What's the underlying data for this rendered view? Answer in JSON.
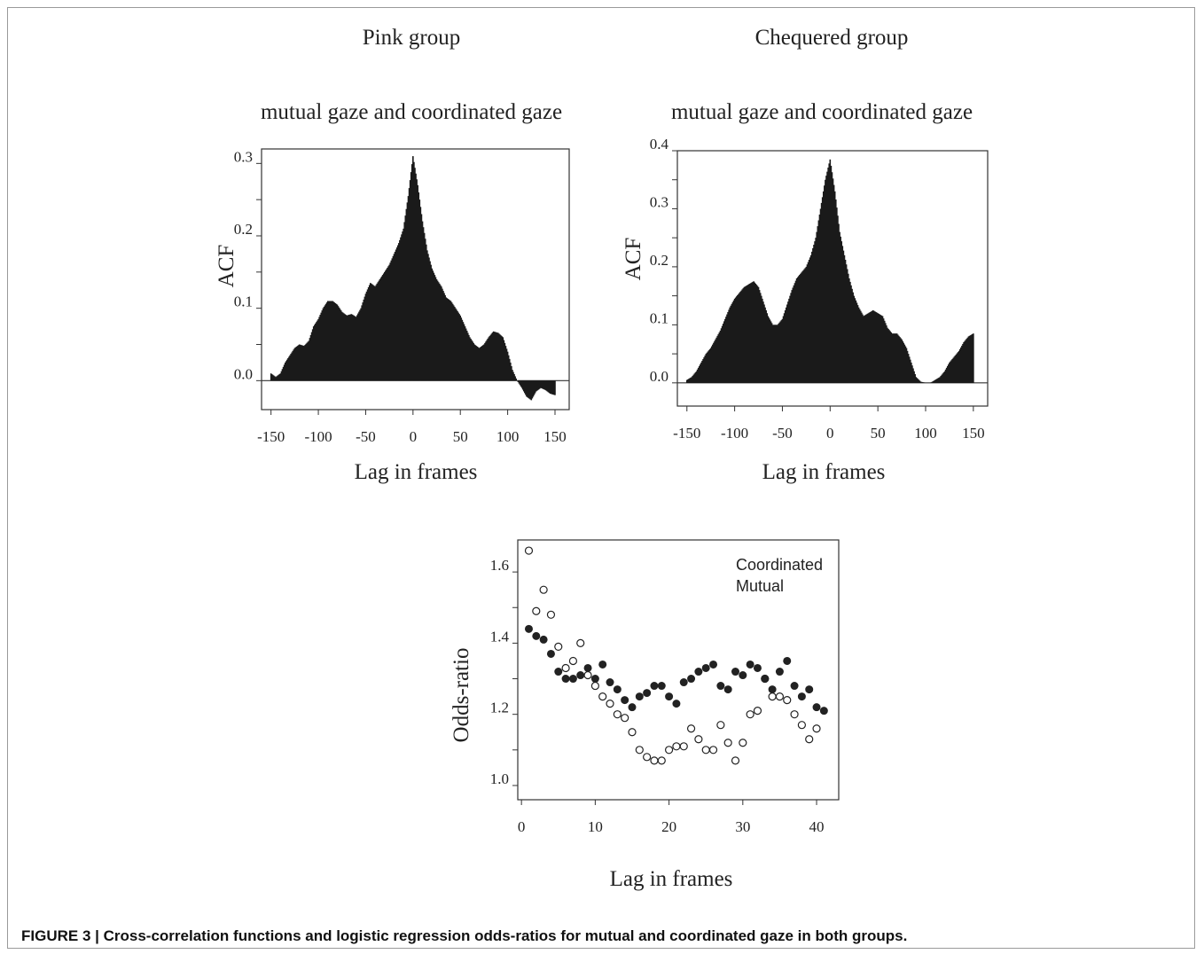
{
  "caption": "FIGURE 3 | Cross-correlation functions and logistic regression odds-ratios for mutual and coordinated gaze in both groups.",
  "chart_data": [
    {
      "type": "bar",
      "group_title": "Pink group",
      "title": "mutual gaze and coordinated gaze",
      "xlabel": "Lag in frames",
      "ylabel": "ACF",
      "xlim": [
        -160,
        165
      ],
      "ylim": [
        -0.04,
        0.32
      ],
      "xticks": [
        "-150",
        "-100",
        "-50",
        "0",
        "50",
        "100",
        "150"
      ],
      "xtick_values": [
        -150,
        -100,
        -50,
        0,
        50,
        100,
        150
      ],
      "yticks": [
        "0.0",
        "0.1",
        "0.2",
        "0.3"
      ],
      "ytick_values": [
        0.0,
        0.1,
        0.2,
        0.3
      ],
      "bar_color": "#1a1a1a",
      "profile_x": [
        -150,
        -145,
        -140,
        -135,
        -130,
        -125,
        -120,
        -115,
        -110,
        -105,
        -100,
        -95,
        -90,
        -85,
        -80,
        -75,
        -70,
        -65,
        -60,
        -55,
        -50,
        -45,
        -40,
        -35,
        -30,
        -25,
        -20,
        -15,
        -10,
        -5,
        0,
        5,
        10,
        15,
        20,
        25,
        30,
        35,
        40,
        45,
        50,
        55,
        60,
        65,
        70,
        75,
        80,
        85,
        90,
        95,
        100,
        105,
        110,
        115,
        120,
        125,
        130,
        135,
        140,
        145,
        150
      ],
      "profile_y": [
        0.01,
        0.005,
        0.01,
        0.025,
        0.035,
        0.045,
        0.05,
        0.048,
        0.055,
        0.075,
        0.085,
        0.1,
        0.11,
        0.11,
        0.105,
        0.095,
        0.09,
        0.092,
        0.088,
        0.1,
        0.12,
        0.135,
        0.13,
        0.14,
        0.15,
        0.16,
        0.175,
        0.19,
        0.21,
        0.255,
        0.31,
        0.27,
        0.22,
        0.18,
        0.155,
        0.14,
        0.13,
        0.115,
        0.11,
        0.1,
        0.09,
        0.075,
        0.06,
        0.05,
        0.045,
        0.05,
        0.06,
        0.068,
        0.066,
        0.06,
        0.04,
        0.015,
        0.0,
        -0.01,
        -0.022,
        -0.027,
        -0.015,
        -0.01,
        -0.013,
        -0.018,
        -0.02
      ]
    },
    {
      "type": "bar",
      "group_title": "Chequered group",
      "title": "mutual gaze and coordinated gaze",
      "xlabel": "Lag in frames",
      "ylabel": "ACF",
      "xlim": [
        -160,
        165
      ],
      "ylim": [
        -0.04,
        0.4
      ],
      "xticks": [
        "-150",
        "-100",
        "-50",
        "0",
        "50",
        "100",
        "150"
      ],
      "xtick_values": [
        -150,
        -100,
        -50,
        0,
        50,
        100,
        150
      ],
      "yticks": [
        "0.0",
        "0.1",
        "0.2",
        "0.3",
        "0.4"
      ],
      "ytick_values": [
        0.0,
        0.1,
        0.2,
        0.3,
        0.4
      ],
      "bar_color": "#1a1a1a",
      "profile_x": [
        -150,
        -145,
        -140,
        -135,
        -130,
        -125,
        -120,
        -115,
        -110,
        -105,
        -100,
        -95,
        -90,
        -85,
        -80,
        -75,
        -70,
        -65,
        -60,
        -55,
        -50,
        -45,
        -40,
        -35,
        -30,
        -25,
        -20,
        -15,
        -10,
        -5,
        0,
        5,
        10,
        15,
        20,
        25,
        30,
        35,
        40,
        45,
        50,
        55,
        60,
        65,
        70,
        75,
        80,
        85,
        90,
        95,
        100,
        105,
        110,
        115,
        120,
        125,
        130,
        135,
        140,
        145,
        150
      ],
      "profile_y": [
        0.005,
        0.01,
        0.02,
        0.035,
        0.05,
        0.06,
        0.075,
        0.09,
        0.11,
        0.13,
        0.145,
        0.155,
        0.165,
        0.17,
        0.175,
        0.165,
        0.14,
        0.115,
        0.1,
        0.1,
        0.11,
        0.135,
        0.16,
        0.18,
        0.19,
        0.2,
        0.22,
        0.25,
        0.3,
        0.35,
        0.385,
        0.33,
        0.26,
        0.22,
        0.18,
        0.15,
        0.13,
        0.115,
        0.12,
        0.125,
        0.12,
        0.115,
        0.095,
        0.085,
        0.085,
        0.075,
        0.06,
        0.035,
        0.01,
        0.002,
        0.0,
        0.0,
        0.005,
        0.01,
        0.02,
        0.035,
        0.045,
        0.055,
        0.07,
        0.08,
        0.085
      ]
    },
    {
      "type": "scatter",
      "xlabel": "Lag in frames",
      "ylabel": "Odds-ratio",
      "xlim": [
        -0.5,
        43
      ],
      "ylim": [
        0.96,
        1.69
      ],
      "xticks": [
        "0",
        "10",
        "20",
        "30",
        "40"
      ],
      "xtick_values": [
        0,
        10,
        20,
        30,
        40
      ],
      "yticks": [
        "1.0",
        "1.2",
        "1.4",
        "1.6"
      ],
      "ytick_values": [
        1.0,
        1.2,
        1.4,
        1.6
      ],
      "legend": {
        "placement": "top-right",
        "entries": [
          "Coordinated",
          "Mutual"
        ]
      },
      "series": [
        {
          "name": "Coordinated",
          "marker": "open-circle",
          "color": "#222222",
          "x": [
            1,
            2,
            3,
            4,
            5,
            6,
            7,
            8,
            9,
            10,
            11,
            12,
            13,
            14,
            15,
            16,
            17,
            18,
            19,
            20,
            21,
            22,
            23,
            24,
            25,
            26,
            27,
            28,
            29,
            30,
            31,
            32,
            33,
            34,
            35,
            36,
            37,
            38,
            39,
            40
          ],
          "y": [
            1.66,
            1.49,
            1.55,
            1.48,
            1.39,
            1.33,
            1.35,
            1.4,
            1.31,
            1.28,
            1.25,
            1.23,
            1.2,
            1.19,
            1.15,
            1.1,
            1.08,
            1.07,
            1.07,
            1.1,
            1.11,
            1.11,
            1.16,
            1.13,
            1.1,
            1.1,
            1.17,
            1.12,
            1.07,
            1.12,
            1.2,
            1.21,
            1.3,
            1.25,
            1.25,
            1.24,
            1.2,
            1.17,
            1.13,
            1.16
          ]
        },
        {
          "name": "Mutual",
          "marker": "filled-circle",
          "color": "#222222",
          "x": [
            1,
            2,
            3,
            4,
            5,
            6,
            7,
            8,
            9,
            10,
            11,
            12,
            13,
            14,
            15,
            16,
            17,
            18,
            19,
            20,
            21,
            22,
            23,
            24,
            25,
            26,
            27,
            28,
            29,
            30,
            31,
            32,
            33,
            34,
            35,
            36,
            37,
            38,
            39,
            40,
            41
          ],
          "y": [
            1.44,
            1.42,
            1.41,
            1.37,
            1.32,
            1.3,
            1.3,
            1.31,
            1.33,
            1.3,
            1.34,
            1.29,
            1.27,
            1.24,
            1.22,
            1.25,
            1.26,
            1.28,
            1.28,
            1.25,
            1.23,
            1.29,
            1.3,
            1.32,
            1.33,
            1.34,
            1.28,
            1.27,
            1.32,
            1.31,
            1.34,
            1.33,
            1.3,
            1.27,
            1.32,
            1.35,
            1.28,
            1.25,
            1.27,
            1.22,
            1.21
          ]
        }
      ]
    }
  ]
}
